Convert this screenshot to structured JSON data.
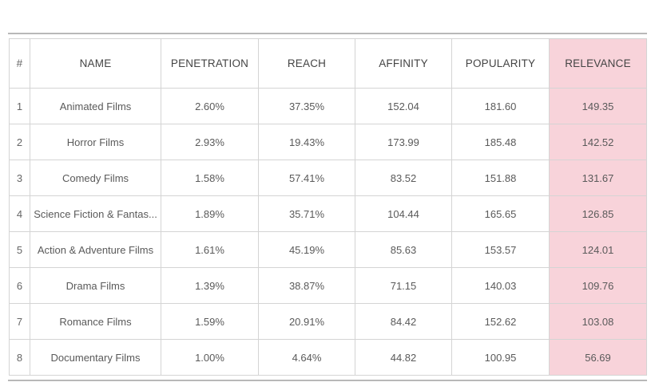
{
  "table": {
    "headers": {
      "index": "#",
      "name": "NAME",
      "penetration": "PENETRATION",
      "reach": "REACH",
      "affinity": "AFFINITY",
      "popularity": "POPULARITY",
      "relevance": "RELEVANCE"
    },
    "highlight_color": "#f8d3da",
    "rows": [
      {
        "index": "1",
        "name": "Animated Films",
        "penetration": "2.60%",
        "reach": "37.35%",
        "affinity": "152.04",
        "popularity": "181.60",
        "relevance": "149.35"
      },
      {
        "index": "2",
        "name": "Horror Films",
        "penetration": "2.93%",
        "reach": "19.43%",
        "affinity": "173.99",
        "popularity": "185.48",
        "relevance": "142.52"
      },
      {
        "index": "3",
        "name": "Comedy Films",
        "penetration": "1.58%",
        "reach": "57.41%",
        "affinity": "83.52",
        "popularity": "151.88",
        "relevance": "131.67"
      },
      {
        "index": "4",
        "name": "Science Fiction & Fantas...",
        "penetration": "1.89%",
        "reach": "35.71%",
        "affinity": "104.44",
        "popularity": "165.65",
        "relevance": "126.85"
      },
      {
        "index": "5",
        "name": "Action & Adventure Films",
        "penetration": "1.61%",
        "reach": "45.19%",
        "affinity": "85.63",
        "popularity": "153.57",
        "relevance": "124.01"
      },
      {
        "index": "6",
        "name": "Drama Films",
        "penetration": "1.39%",
        "reach": "38.87%",
        "affinity": "71.15",
        "popularity": "140.03",
        "relevance": "109.76"
      },
      {
        "index": "7",
        "name": "Romance Films",
        "penetration": "1.59%",
        "reach": "20.91%",
        "affinity": "84.42",
        "popularity": "152.62",
        "relevance": "103.08"
      },
      {
        "index": "8",
        "name": "Documentary Films",
        "penetration": "1.00%",
        "reach": "4.64%",
        "affinity": "44.82",
        "popularity": "100.95",
        "relevance": "56.69"
      }
    ]
  }
}
